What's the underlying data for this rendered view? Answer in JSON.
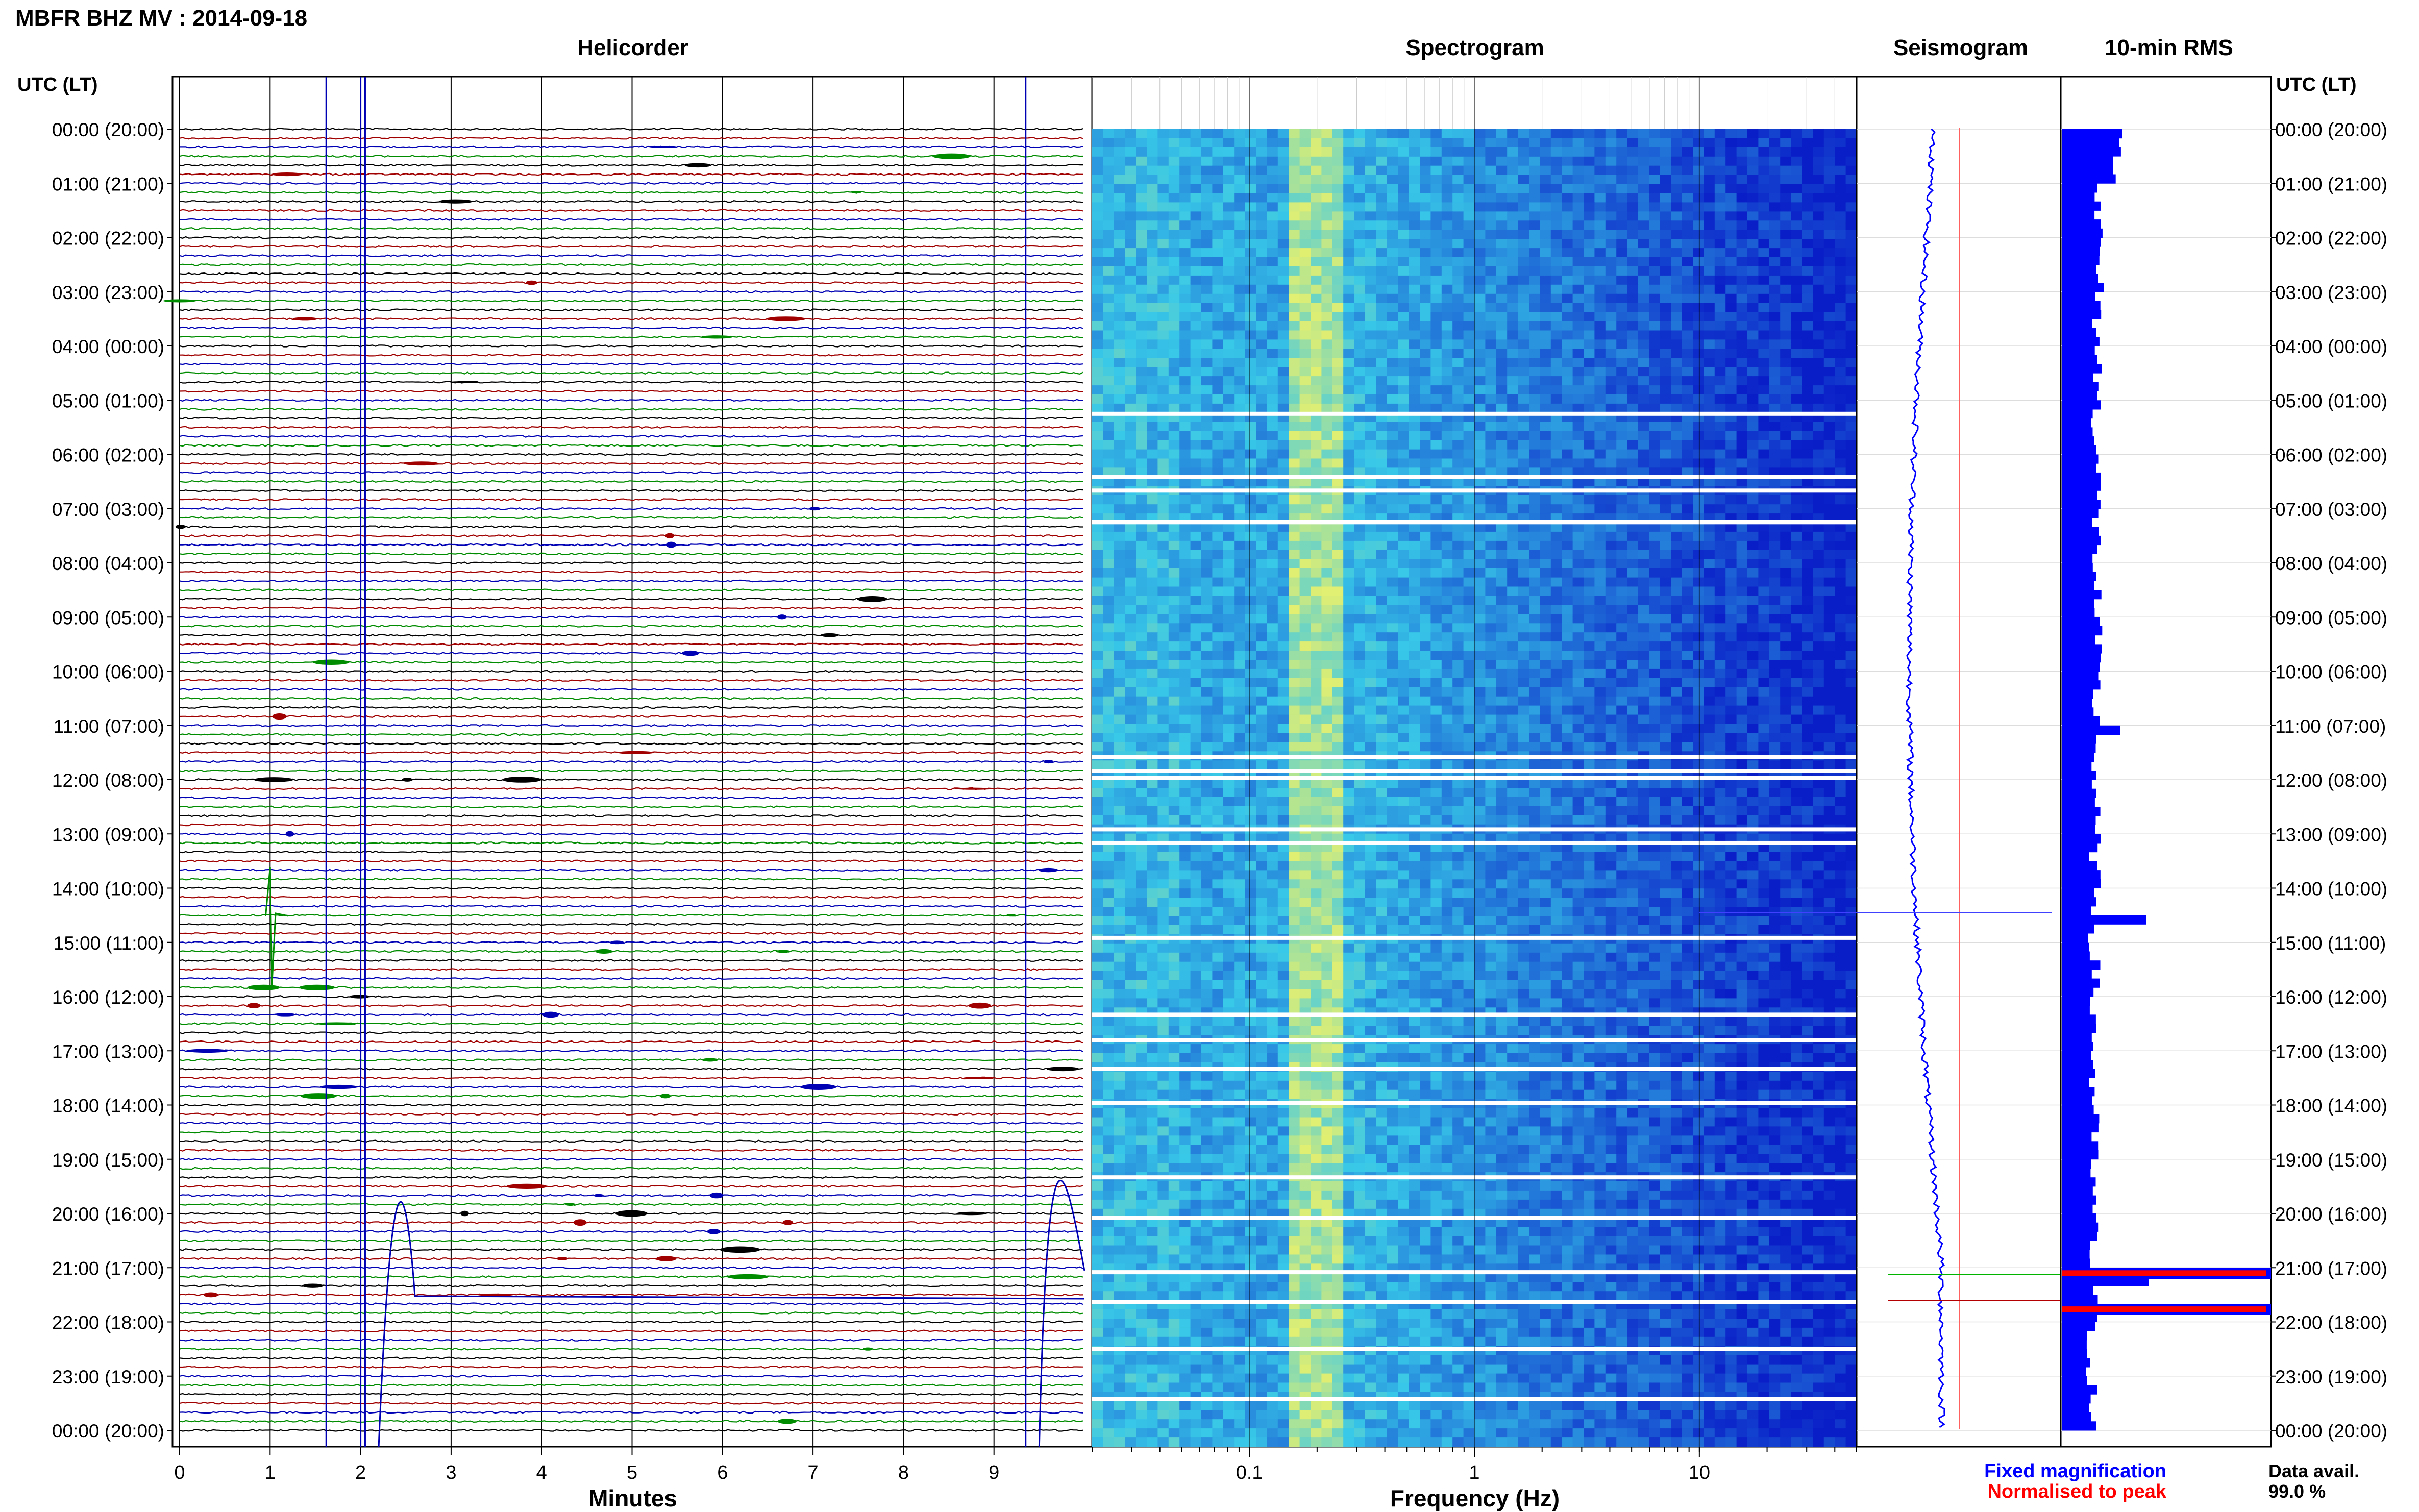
{
  "header": {
    "title": "MBFR BHZ MV : 2014-09-18",
    "utc_left": "UTC (LT)",
    "utc_right": "UTC (LT)"
  },
  "panels": {
    "helicorder": "Helicorder",
    "spectrogram": "Spectrogram",
    "seismogram": "Seismogram",
    "rms": "10-min RMS"
  },
  "footer": {
    "minutes_label": "Minutes",
    "frequency_label": "Frequency (Hz)",
    "legend_fixed": "Fixed magnification",
    "legend_normalised": "Normalised to peak",
    "data_avail_label": "Data avail.",
    "data_avail_value": "99.0 %"
  },
  "colors": {
    "trace_black": "#000000",
    "trace_red": "#a00000",
    "trace_blue": "#0000b4",
    "trace_green": "#008c00",
    "fixed_magnification": "#0000ff",
    "normalised_to_peak": "#ff0000",
    "spectrogram_low": "#0a1ec8",
    "spectrogram_mid": "#38c8e8",
    "spectrogram_high": "#e6f06e"
  },
  "chart_data": [
    {
      "type": "line",
      "name": "helicorder",
      "xlabel": "Minutes",
      "xlim": [
        0,
        10
      ],
      "x_ticks": [
        "0",
        "1",
        "2",
        "3",
        "4",
        "5",
        "6",
        "7",
        "8",
        "9"
      ],
      "row_labels": [
        "00:00 (20:00)",
        "01:00 (21:00)",
        "02:00 (22:00)",
        "03:00 (23:00)",
        "04:00 (00:00)",
        "05:00 (01:00)",
        "06:00 (02:00)",
        "07:00 (03:00)",
        "08:00 (04:00)",
        "09:00 (05:00)",
        "10:00 (06:00)",
        "11:00 (07:00)",
        "12:00 (08:00)",
        "13:00 (09:00)",
        "14:00 (10:00)",
        "15:00 (11:00)",
        "16:00 (12:00)",
        "17:00 (13:00)",
        "18:00 (14:00)",
        "19:00 (15:00)",
        "20:00 (16:00)",
        "21:00 (17:00)",
        "22:00 (18:00)",
        "23:00 (19:00)",
        "00:00 (20:00)"
      ],
      "traces_per_hour": 6,
      "trace_colors": [
        "trace_black",
        "trace_red",
        "trace_blue",
        "trace_green"
      ]
    },
    {
      "type": "heatmap",
      "name": "spectrogram",
      "xlabel": "Frequency (Hz)",
      "x_scale": "log",
      "xlim": [
        0.02,
        50
      ],
      "x_ticks": [
        "0.1",
        "1",
        "10"
      ],
      "peak_band_hz": [
        0.15,
        0.25
      ]
    },
    {
      "type": "line",
      "name": "seismogram",
      "fixed_magnification": true
    },
    {
      "type": "bar",
      "name": "10-min RMS",
      "orientation": "horizontal",
      "bins_per_hour": 6,
      "peak_bins": [
        "21:00",
        "21:40"
      ]
    }
  ]
}
